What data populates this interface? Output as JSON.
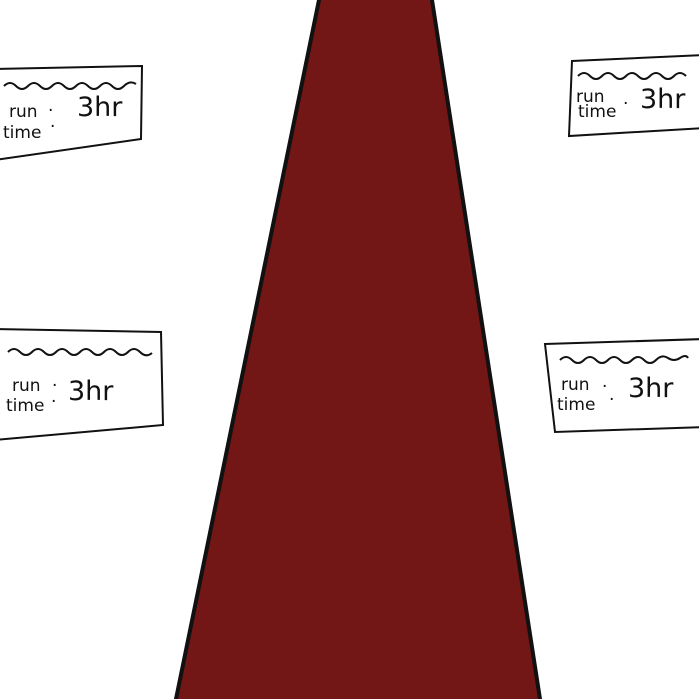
{
  "colors": {
    "background": "#ffffff",
    "carpet": "#721616",
    "ink": "#111111"
  },
  "placards": [
    {
      "label_run": "run",
      "sep_run": "·",
      "label_time": "time",
      "sep_time": "·",
      "value": "3hr"
    },
    {
      "label_run": "run",
      "sep_run": "",
      "label_time": "time",
      "sep_time": "·",
      "value": "3hr"
    },
    {
      "label_run": "run",
      "sep_run": "·",
      "label_time": "time",
      "sep_time": "·",
      "value": "3hr"
    },
    {
      "label_run": "run",
      "sep_run": "·",
      "label_time": "time",
      "sep_time": "·",
      "value": "3hr"
    }
  ]
}
